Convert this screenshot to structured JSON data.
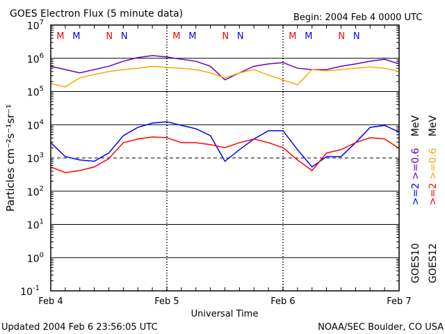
{
  "chart_data": {
    "type": "line",
    "title": "GOES Electron Flux (5 minute data)",
    "begin": "Begin: 2004 Feb 4 0000 UTC",
    "xlabel": "Universal Time",
    "ylabel": "Particles cm⁻²s⁻¹sr⁻¹",
    "y_scale": "log",
    "y_units_note": "values are log10 of flux",
    "ylim_log10": [
      -1,
      7
    ],
    "y_ticks": [
      {
        "base": "10",
        "exp": "7",
        "value": 7
      },
      {
        "base": "10",
        "exp": "6",
        "value": 6
      },
      {
        "base": "10",
        "exp": "5",
        "value": 5
      },
      {
        "base": "10",
        "exp": "4",
        "value": 4
      },
      {
        "base": "10",
        "exp": "3",
        "value": 3
      },
      {
        "base": "10",
        "exp": "2",
        "value": 2
      },
      {
        "base": "10",
        "exp": "1",
        "value": 1
      },
      {
        "base": "10",
        "exp": "0",
        "value": 0
      },
      {
        "base": "10",
        "exp": "-1",
        "value": -1
      }
    ],
    "xlim_hours": [
      0,
      72
    ],
    "x_ticks": [
      {
        "label": "Feb 4",
        "hour": 0
      },
      {
        "label": "Feb 5",
        "hour": 24
      },
      {
        "label": "Feb 6",
        "hour": 48
      },
      {
        "label": "Feb 7",
        "hour": 72
      }
    ],
    "x_hours": [
      0,
      3,
      6,
      9,
      12,
      15,
      18,
      21,
      24,
      27,
      30,
      33,
      36,
      39,
      42,
      45,
      48,
      51,
      54,
      57,
      60,
      63,
      66,
      69,
      72
    ],
    "series": [
      {
        "name": "GOES10 >=0.6 MeV",
        "color": "#6a00b8",
        "values": [
          5.76,
          5.66,
          5.56,
          5.66,
          5.76,
          5.91,
          6.02,
          6.08,
          6.04,
          5.97,
          5.91,
          5.76,
          5.35,
          5.56,
          5.76,
          5.83,
          5.87,
          5.7,
          5.66,
          5.66,
          5.76,
          5.83,
          5.91,
          5.97,
          5.83
        ]
      },
      {
        "name": "GOES12 >=0.6 MeV",
        "color": "#ffa500",
        "values": [
          5.24,
          5.14,
          5.41,
          5.51,
          5.6,
          5.66,
          5.7,
          5.76,
          5.72,
          5.7,
          5.66,
          5.56,
          5.41,
          5.56,
          5.66,
          5.49,
          5.35,
          5.2,
          5.66,
          5.62,
          5.66,
          5.7,
          5.74,
          5.7,
          5.6
        ]
      },
      {
        "name": "GOES10 >=2 MeV",
        "color": "#0000ff",
        "values": [
          3.46,
          3.04,
          2.94,
          2.9,
          3.15,
          3.67,
          3.92,
          4.05,
          4.09,
          3.98,
          3.88,
          3.67,
          2.9,
          3.25,
          3.57,
          3.82,
          3.82,
          3.25,
          2.73,
          3.04,
          3.04,
          3.46,
          3.92,
          3.98,
          3.78
        ]
      },
      {
        "name": "GOES12 >=2 MeV",
        "color": "#ff0000",
        "values": [
          2.73,
          2.56,
          2.62,
          2.73,
          2.98,
          3.46,
          3.57,
          3.63,
          3.61,
          3.46,
          3.46,
          3.4,
          3.31,
          3.46,
          3.57,
          3.46,
          3.31,
          2.94,
          2.62,
          3.15,
          3.25,
          3.46,
          3.61,
          3.57,
          3.29
        ]
      }
    ],
    "threshold_log10": 3,
    "markers": [
      {
        "label": "M",
        "color": "#ff0000",
        "hours": [
          2,
          26,
          50
        ]
      },
      {
        "label": "M",
        "color": "#0000ff",
        "hours": [
          5.3,
          29.3,
          53.3
        ]
      },
      {
        "label": "N",
        "color": "#ff0000",
        "hours": [
          12.1,
          36.1,
          60.1
        ]
      },
      {
        "label": "N",
        "color": "#0000ff",
        "hours": [
          15.2,
          39.2,
          63.2
        ]
      }
    ],
    "legend": {
      "placement": "right",
      "columns": [
        {
          "sat": "GOES10",
          "low": ">=2",
          "low_color": "#0000ff",
          "high": ">=0.6",
          "high_color": "#6a00b8",
          "unit": "MeV"
        },
        {
          "sat": "GOES12",
          "low": ">=2",
          "low_color": "#ff0000",
          "high": ">=0.6",
          "high_color": "#ffa500",
          "unit": "MeV"
        }
      ]
    }
  },
  "footer": {
    "updated": "Updated 2004 Feb  6 23:56:05 UTC",
    "credit": "NOAA/SEC Boulder, CO USA"
  }
}
